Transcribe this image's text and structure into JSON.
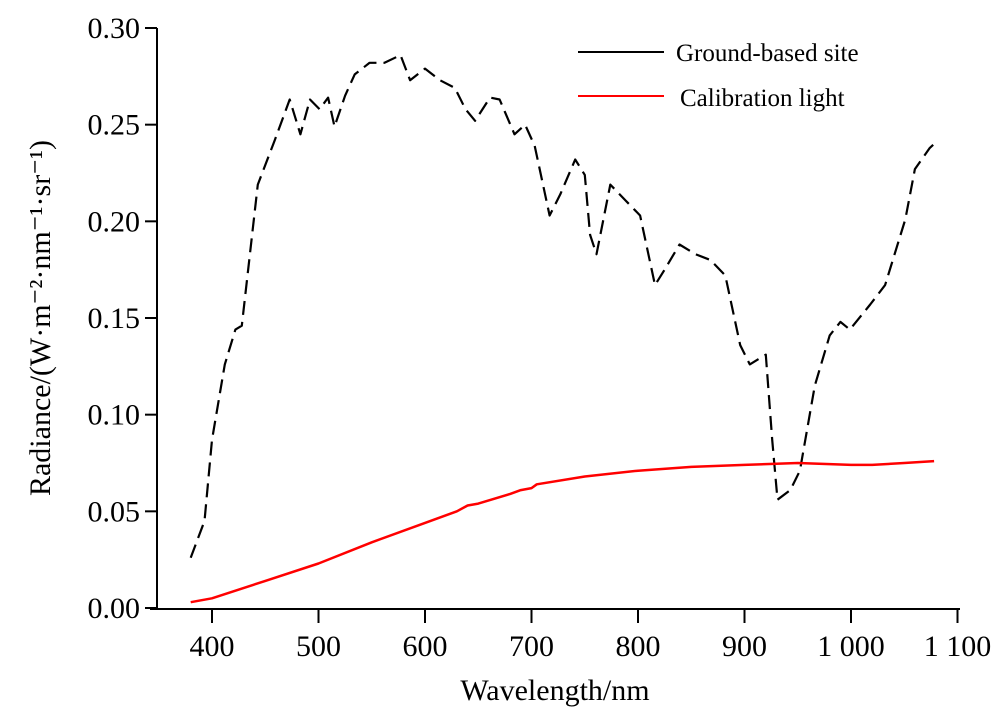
{
  "chart_data": {
    "type": "line",
    "title": "",
    "xlabel": "Wavelength/nm",
    "ylabel": "Radiance/(W·m⁻²·nm⁻¹·sr⁻¹)",
    "xlim": [
      350,
      1100
    ],
    "ylim": [
      0,
      0.3
    ],
    "grid": false,
    "legend_position": "top-right",
    "x_ticks": [
      400,
      500,
      600,
      700,
      800,
      900,
      1000,
      1100
    ],
    "x_tick_labels": [
      "400",
      "500",
      "600",
      "700",
      "800",
      "900",
      "1 000",
      "1 100"
    ],
    "y_ticks": [
      0,
      0.05,
      0.1,
      0.15,
      0.2,
      0.25,
      0.3
    ],
    "y_tick_labels": [
      "0.00",
      "0.05",
      "0.10",
      "0.15",
      "0.20",
      "0.25",
      "0.30"
    ],
    "series": [
      {
        "name": "Ground-based site",
        "color": "#000000",
        "style": "dashed",
        "x": [
          380,
          393,
          400,
          412,
          422,
          428,
          443,
          459,
          473,
          483,
          492,
          501,
          509,
          515,
          525,
          534,
          548,
          562,
          577,
          586,
          600,
          614,
          628,
          638,
          647,
          661,
          670,
          684,
          694,
          703,
          717,
          727,
          741,
          750,
          755,
          761,
          774,
          788,
          802,
          816,
          825,
          839,
          854,
          868,
          882,
          896,
          905,
          920,
          926,
          931,
          943,
          952,
          966,
          980,
          990,
          999,
          1018,
          1032,
          1051,
          1060,
          1074,
          1078
        ],
        "y": [
          0.026,
          0.045,
          0.087,
          0.126,
          0.144,
          0.146,
          0.219,
          0.242,
          0.263,
          0.245,
          0.263,
          0.258,
          0.264,
          0.249,
          0.265,
          0.276,
          0.282,
          0.282,
          0.286,
          0.273,
          0.279,
          0.273,
          0.269,
          0.258,
          0.252,
          0.264,
          0.263,
          0.245,
          0.25,
          0.239,
          0.203,
          0.214,
          0.232,
          0.224,
          0.193,
          0.183,
          0.219,
          0.211,
          0.203,
          0.167,
          0.175,
          0.188,
          0.183,
          0.18,
          0.172,
          0.136,
          0.126,
          0.131,
          0.087,
          0.056,
          0.061,
          0.071,
          0.115,
          0.141,
          0.148,
          0.144,
          0.157,
          0.167,
          0.201,
          0.227,
          0.238,
          0.24
        ]
      },
      {
        "name": "Calibration light",
        "color": "#ff0000",
        "style": "solid",
        "x": [
          380,
          400,
          450,
          500,
          550,
          600,
          630,
          640,
          650,
          680,
          690,
          700,
          705,
          750,
          800,
          850,
          900,
          950,
          1000,
          1020,
          1050,
          1078
        ],
        "y": [
          0.003,
          0.005,
          0.014,
          0.023,
          0.034,
          0.044,
          0.05,
          0.053,
          0.054,
          0.059,
          0.061,
          0.062,
          0.064,
          0.068,
          0.071,
          0.073,
          0.074,
          0.075,
          0.074,
          0.074,
          0.075,
          0.076
        ]
      }
    ]
  }
}
